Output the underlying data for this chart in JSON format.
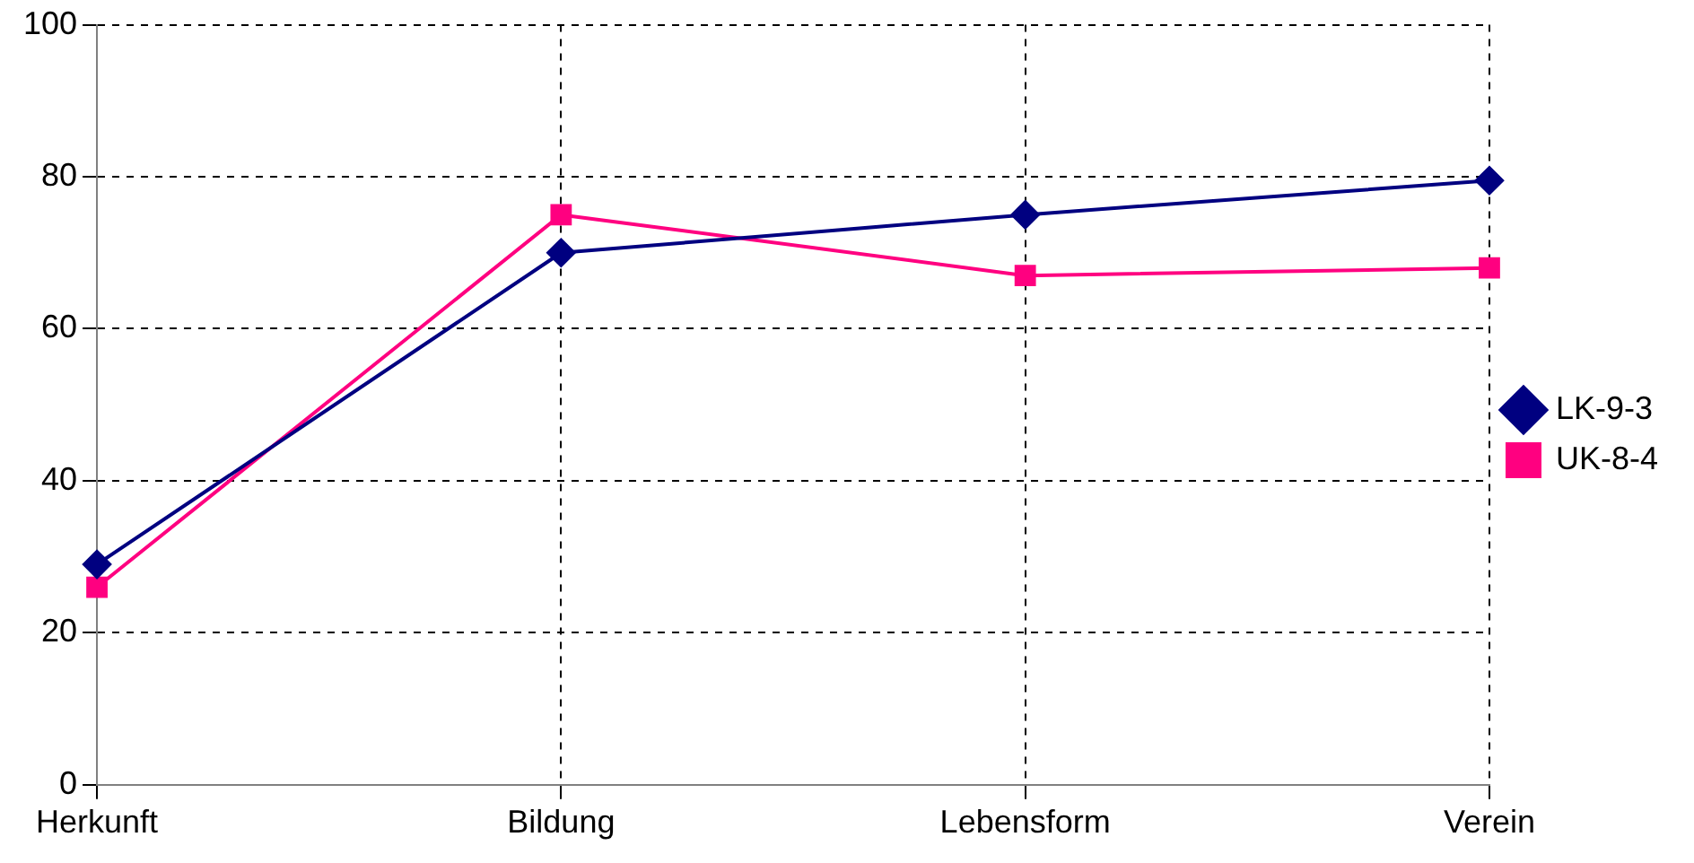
{
  "chart_data": {
    "type": "line",
    "categories": [
      "Herkunft",
      "Bildung",
      "Lebensform",
      "Verein"
    ],
    "series": [
      {
        "name": "LK-9-3",
        "color": "#000080",
        "marker": "diamond",
        "values": [
          29,
          70,
          75,
          79.5
        ]
      },
      {
        "name": "UK-8-4",
        "color": "#ff0080",
        "marker": "square",
        "values": [
          26,
          75,
          67,
          68
        ]
      }
    ],
    "ylim": [
      0,
      100
    ],
    "yticks": [
      0,
      20,
      40,
      60,
      80,
      100
    ],
    "grid": true,
    "legend": "right",
    "line_style": "solid"
  }
}
